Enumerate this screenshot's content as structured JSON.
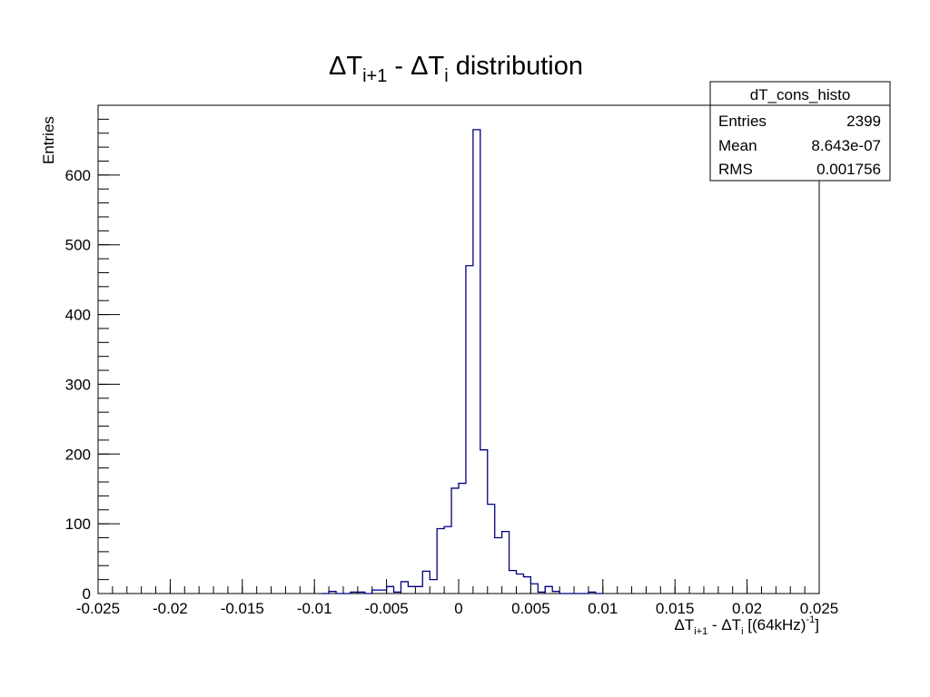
{
  "chart_data": {
    "type": "histogram",
    "title": {
      "base": "ΔT",
      "sub1": "i+1",
      "mid": " - ΔT",
      "sub2": "i",
      "tail": " distribution"
    },
    "ylabel": "Entries",
    "xlabel": {
      "base": "ΔT",
      "sub1": "i+1",
      "mid": " - ΔT",
      "sub2": "i",
      "tail": " [(64kHz)",
      "sup": "-1",
      "end": "]"
    },
    "xlim": [
      -0.025,
      0.025
    ],
    "ylim": [
      0,
      700
    ],
    "x_ticks": [
      -0.025,
      -0.02,
      -0.015,
      -0.01,
      -0.005,
      0,
      0.005,
      0.01,
      0.015,
      0.02,
      0.025
    ],
    "x_tick_labels": [
      "-0.025",
      "-0.02",
      "-0.015",
      "-0.01",
      "-0.005",
      "0",
      "0.005",
      "0.01",
      "0.015",
      "0.02",
      "0.025"
    ],
    "y_ticks": [
      0,
      100,
      200,
      300,
      400,
      500,
      600
    ],
    "y_tick_labels": [
      "0",
      "100",
      "200",
      "300",
      "400",
      "500",
      "600"
    ],
    "bin_width": 0.0005,
    "bins_x_start": [
      -0.0095,
      -0.009,
      -0.0085,
      -0.008,
      -0.0075,
      -0.007,
      -0.0065,
      -0.006,
      -0.0055,
      -0.005,
      -0.0045,
      -0.004,
      -0.0035,
      -0.003,
      -0.0025,
      -0.002,
      -0.0015,
      -0.001,
      -0.0005,
      0,
      0.0005,
      0.001,
      0.0015,
      0.002,
      0.0025,
      0.003,
      0.0035,
      0.004,
      0.0045,
      0.005,
      0.0055,
      0.006,
      0.0065,
      0.007,
      0.0075,
      0.008,
      0.0085,
      0.009,
      0.0095
    ],
    "bins_y": [
      0,
      3,
      0,
      0,
      2,
      2,
      0,
      5,
      5,
      10,
      2,
      17,
      10,
      10,
      32,
      20,
      93,
      96,
      151,
      158,
      470,
      665,
      206,
      128,
      80,
      89,
      33,
      28,
      24,
      14,
      2,
      10,
      3,
      0,
      0,
      0,
      0,
      2,
      0
    ],
    "line_color": "#000080",
    "grid": false,
    "stats_box": {
      "title": "dT_cons_histo",
      "rows": [
        {
          "label": "Entries",
          "value": "2399"
        },
        {
          "label": "Mean",
          "value": "8.643e-07"
        },
        {
          "label": "RMS",
          "value": "0.001756"
        }
      ]
    }
  }
}
